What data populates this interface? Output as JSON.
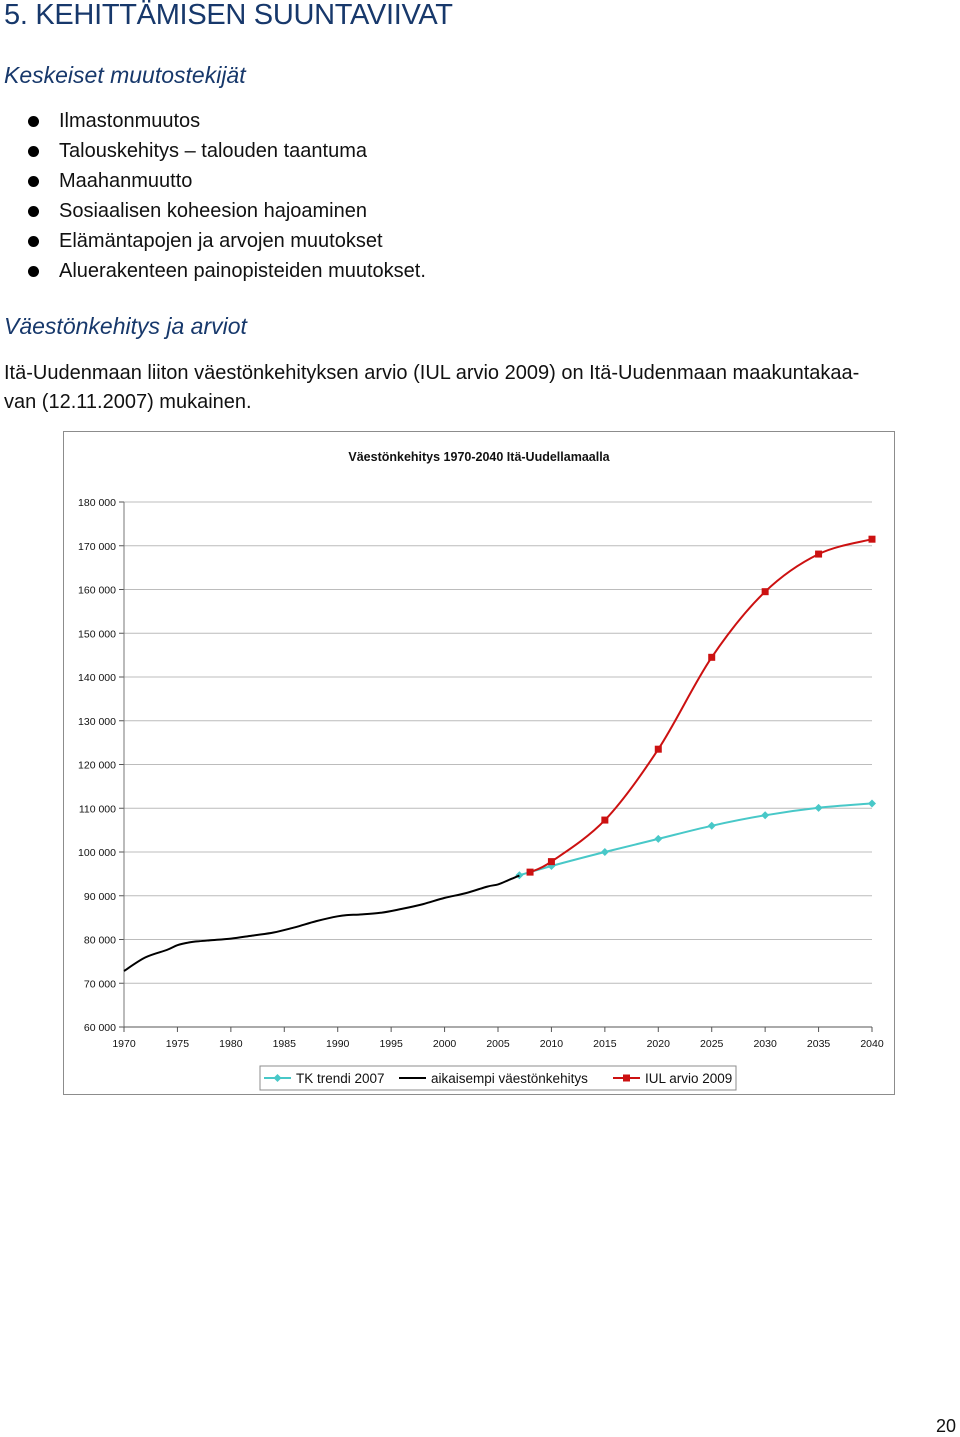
{
  "document": {
    "heading": "5. KEHITTÄMISEN SUUNTAVIIVAT",
    "section1_title": "Keskeiset muutostekijät",
    "bullets": [
      "Ilmastonmuutos",
      "Talouskehitys – talouden taantuma",
      "Maahanmuutto",
      "Sosiaalisen koheesion hajoaminen",
      "Elämäntapojen ja arvojen muutokset",
      "Aluerakenteen painopisteiden muutokset."
    ],
    "section2_title": "Väestönkehitys ja arviot",
    "paragraph_line1": "Itä-Uudenmaan liiton väestönkehityksen arvio (IUL arvio 2009) on Itä-Uudenmaan maakuntakaa-",
    "paragraph_line2": "van (12.11.2007) mukainen.",
    "page_number": "20"
  },
  "chart_data": {
    "type": "line",
    "title": "Väestönkehitys 1970-2040 Itä-Uudellamaalla",
    "xlabel": "",
    "ylabel": "",
    "xlim": [
      1970,
      2040
    ],
    "ylim": [
      60000,
      180000
    ],
    "x_ticks": [
      "1970",
      "1975",
      "1980",
      "1985",
      "1990",
      "1995",
      "2000",
      "2005",
      "2010",
      "2015",
      "2020",
      "2025",
      "2030",
      "2035",
      "2040"
    ],
    "y_ticks": [
      "60 000",
      "70 000",
      "80 000",
      "90 000",
      "100 000",
      "110 000",
      "120 000",
      "130 000",
      "140 000",
      "150 000",
      "160 000",
      "170 000",
      "180 000"
    ],
    "grid": "horizontal",
    "legend_position": "bottom",
    "series": [
      {
        "name": "TK trendi 2007",
        "color": "#48c8c8",
        "marker": "diamond",
        "x": [
          2007,
          2010,
          2015,
          2020,
          2025,
          2030,
          2035,
          2040
        ],
        "y": [
          94700,
          96800,
          100000,
          103000,
          106000,
          108400,
          110100,
          111100
        ]
      },
      {
        "name": "aikaisempi väestönkehitys",
        "color": "#000000",
        "marker": "none",
        "x": [
          1970,
          1972,
          1974,
          1975,
          1976,
          1977,
          1978,
          1980,
          1982,
          1984,
          1986,
          1988,
          1990,
          1991,
          1992,
          1994,
          1996,
          1998,
          2000,
          2002,
          2004,
          2005,
          2006,
          2007
        ],
        "y": [
          72800,
          75900,
          77600,
          78700,
          79300,
          79600,
          79800,
          80200,
          80900,
          81600,
          82800,
          84200,
          85300,
          85600,
          85700,
          86100,
          87000,
          88100,
          89500,
          90600,
          92100,
          92600,
          93600,
          94600
        ]
      },
      {
        "name": "IUL arvio 2009",
        "color": "#cc1111",
        "marker": "square",
        "x": [
          2008,
          2010,
          2015,
          2020,
          2025,
          2030,
          2035,
          2040
        ],
        "y": [
          95400,
          97800,
          107300,
          123500,
          144500,
          159500,
          168100,
          171500
        ]
      }
    ]
  }
}
